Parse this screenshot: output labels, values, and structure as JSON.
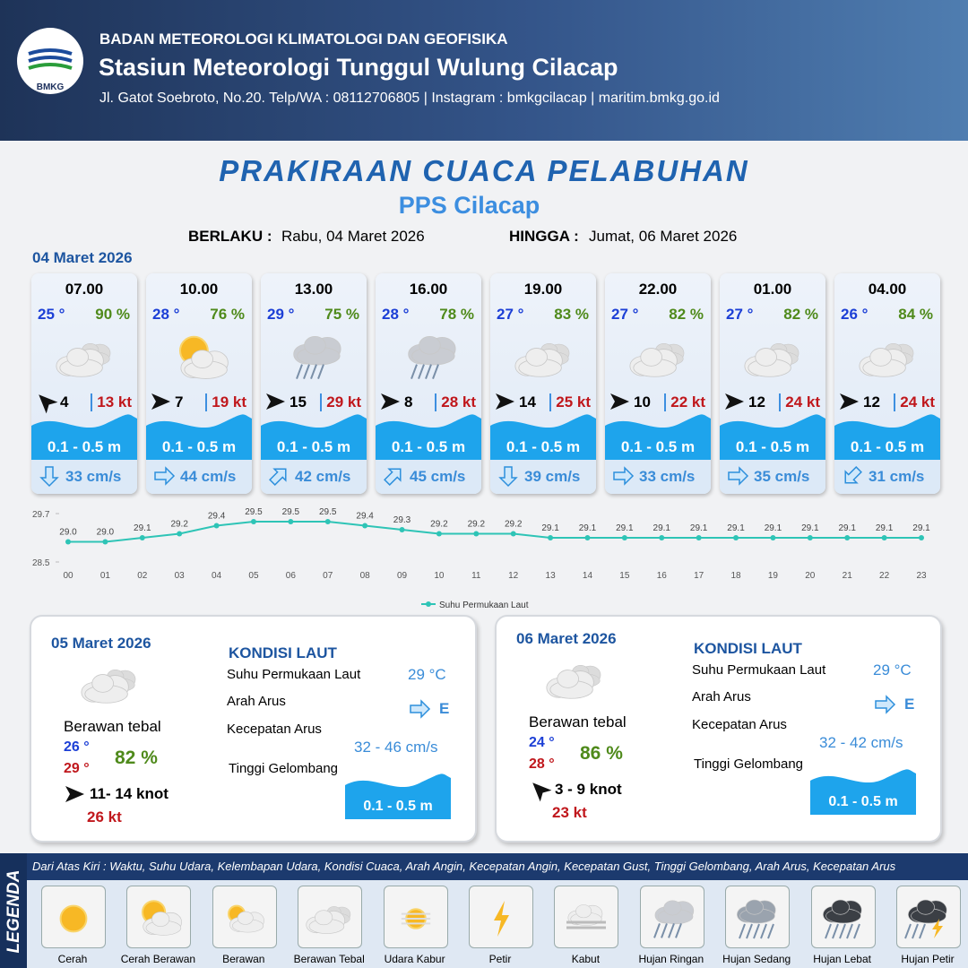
{
  "header": {
    "logo": "BMKG",
    "agency": "BADAN METEOROLOGI KLIMATOLOGI DAN GEOFISIKA",
    "station": "Stasiun Meteorologi Tunggul Wulung Cilacap",
    "contact": "Jl. Gatot Soebroto, No.20. Telp/WA : 08112706805 | Instagram : bmkgcilacap | maritim.bmkg.go.id"
  },
  "title": "PRAKIRAAN CUACA PELABUHAN",
  "subtitle": "PPS Cilacap",
  "validity": {
    "from_label": "BERLAKU :",
    "from": "Rabu, 04 Maret 2026",
    "to_label": "HINGGA :",
    "to": "Jumat, 06 Maret 2026"
  },
  "forecast": {
    "date": "04 Maret 2026",
    "slots": [
      {
        "time": "07.00",
        "temp": "25 °",
        "humidity": "90 %",
        "wind": "4",
        "gust": "13 kt",
        "wave": "0.1 - 0.5 m",
        "current": "33 cm/s"
      },
      {
        "time": "10.00",
        "temp": "28 °",
        "humidity": "76 %",
        "wind": "7",
        "gust": "19 kt",
        "wave": "0.1 - 0.5 m",
        "current": "44 cm/s"
      },
      {
        "time": "13.00",
        "temp": "29 °",
        "humidity": "75 %",
        "wind": "15",
        "gust": "29 kt",
        "wave": "0.1 - 0.5 m",
        "current": "42 cm/s"
      },
      {
        "time": "16.00",
        "temp": "28 °",
        "humidity": "78 %",
        "wind": "8",
        "gust": "28 kt",
        "wave": "0.1 - 0.5 m",
        "current": "45 cm/s"
      },
      {
        "time": "19.00",
        "temp": "27 °",
        "humidity": "83 %",
        "wind": "14",
        "gust": "25 kt",
        "wave": "0.1 - 0.5 m",
        "current": "39 cm/s"
      },
      {
        "time": "22.00",
        "temp": "27 °",
        "humidity": "82 %",
        "wind": "10",
        "gust": "22 kt",
        "wave": "0.1 - 0.5 m",
        "current": "33 cm/s"
      },
      {
        "time": "01.00",
        "temp": "27 °",
        "humidity": "82 %",
        "wind": "12",
        "gust": "24 kt",
        "wave": "0.1 - 0.5 m",
        "current": "35 cm/s"
      },
      {
        "time": "04.00",
        "temp": "26 °",
        "humidity": "84 %",
        "wind": "12",
        "gust": "24 kt",
        "wave": "0.1 - 0.5 m",
        "current": "31 cm/s"
      }
    ]
  },
  "chart_data": {
    "type": "line",
    "categories": [
      "00",
      "01",
      "02",
      "03",
      "04",
      "05",
      "06",
      "07",
      "08",
      "09",
      "10",
      "11",
      "12",
      "13",
      "14",
      "15",
      "16",
      "17",
      "18",
      "19",
      "20",
      "21",
      "22",
      "23"
    ],
    "series": [
      {
        "name": "Suhu Permukaan Laut",
        "color": "#2ec4b6",
        "values": [
          29.0,
          29.0,
          29.1,
          29.2,
          29.4,
          29.5,
          29.5,
          29.5,
          29.4,
          29.3,
          29.2,
          29.2,
          29.2,
          29.1,
          29.1,
          29.1,
          29.1,
          29.1,
          29.1,
          29.1,
          29.1,
          29.1,
          29.1,
          29.1
        ],
        "value_labels": [
          "29.0",
          "29.0",
          "29.1",
          "29.2",
          "29.4",
          "29.5",
          "29.5",
          "29.5",
          "29.4",
          "29.3",
          "29.2",
          "29.2",
          "29.2",
          "29.1",
          "29.1",
          "29.1",
          "29.1",
          "29.1",
          "29.1",
          "29.1",
          "29.1",
          "29.1",
          "29.1",
          "29.1"
        ]
      }
    ],
    "ylim": [
      28.5,
      29.7
    ],
    "yticks": [
      28.5,
      29.7
    ],
    "legend": "bottom"
  },
  "days": [
    {
      "date": "05 Maret 2026",
      "condition": "Berawan tebal",
      "temp_min": "26 °",
      "temp_max": "29 °",
      "humidity": "82 %",
      "wind": "11- 14 knot",
      "gust": "26 kt",
      "sea": {
        "heading": "KONDISI LAUT",
        "sst_label": "Suhu Permukaan Laut",
        "sst": "29 °C",
        "dir_label": "Arah Arus",
        "dir": "E",
        "speed_label": "Kecepatan Arus",
        "speed": "32 -  46 cm/s",
        "wave_label": "Tinggi Gelombang",
        "wave": "0.1 - 0.5 m"
      }
    },
    {
      "date": "06 Maret 2026",
      "condition": "Berawan tebal",
      "temp_min": "24 °",
      "temp_max": "28 °",
      "humidity": "86 %",
      "wind": "3  - 9 knot",
      "gust": "23 kt",
      "sea": {
        "heading": "KONDISI LAUT",
        "sst_label": "Suhu Permukaan Laut",
        "sst": "29 °C",
        "dir_label": "Arah Arus",
        "dir": "E",
        "speed_label": "Kecepatan Arus",
        "speed": "32 - 42 cm/s",
        "wave_label": "Tinggi Gelombang",
        "wave": "0.1 - 0.5 m"
      }
    }
  ],
  "legend": {
    "title": "LEGENDA",
    "description": "Dari Atas Kiri : Waktu, Suhu Udara, Kelembapan Udara, Kondisi Cuaca, Arah Angin, Kecepatan Angin, Kecepatan Gust, Tinggi Gelombang, Arah Arus, Kecepatan Arus",
    "items": [
      "Cerah",
      "Cerah Berawan",
      "Berawan",
      "Berawan Tebal",
      "Udara Kabur",
      "Petir",
      "Kabut",
      "Hujan Ringan",
      "Hujan Sedang",
      "Hujan Lebat",
      "Hujan Petir"
    ]
  }
}
